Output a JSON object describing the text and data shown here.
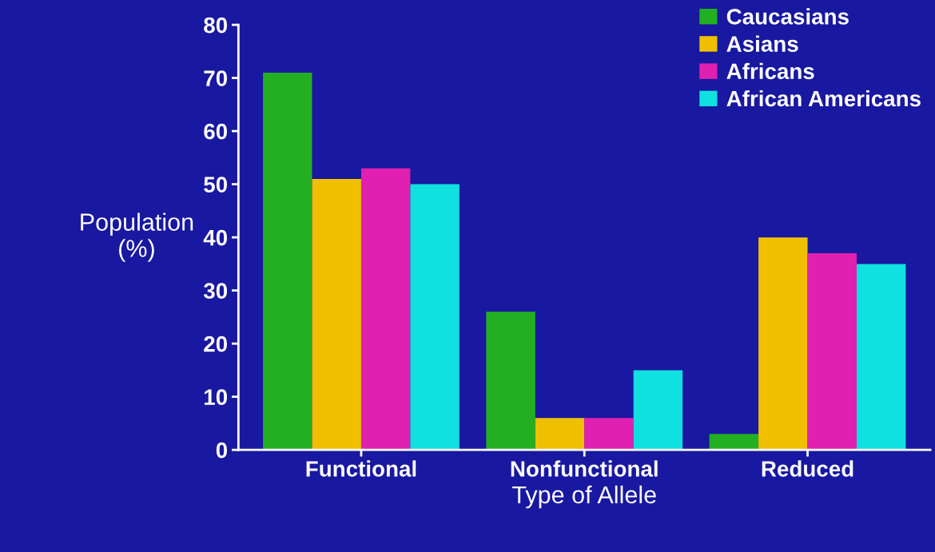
{
  "chart_data": {
    "type": "bar",
    "xlabel": "Type of Allele",
    "ylabel": "Population\n(%)",
    "categories": [
      "Functional",
      "Nonfunctional",
      "Reduced"
    ],
    "series": [
      {
        "name": "Caucasians",
        "color": "#22b022",
        "values": [
          71,
          26,
          3
        ]
      },
      {
        "name": "Asians",
        "color": "#f0c000",
        "values": [
          51,
          6,
          40
        ]
      },
      {
        "name": "Africans",
        "color": "#e020b0",
        "values": [
          53,
          6,
          37
        ]
      },
      {
        "name": "African Americans",
        "color": "#10e0e0",
        "values": [
          50,
          15,
          35
        ]
      }
    ],
    "ylim": [
      0,
      80
    ],
    "yticks": [
      0,
      10,
      20,
      30,
      40,
      50,
      60,
      70,
      80
    ],
    "grid": false,
    "legend": "top right"
  }
}
